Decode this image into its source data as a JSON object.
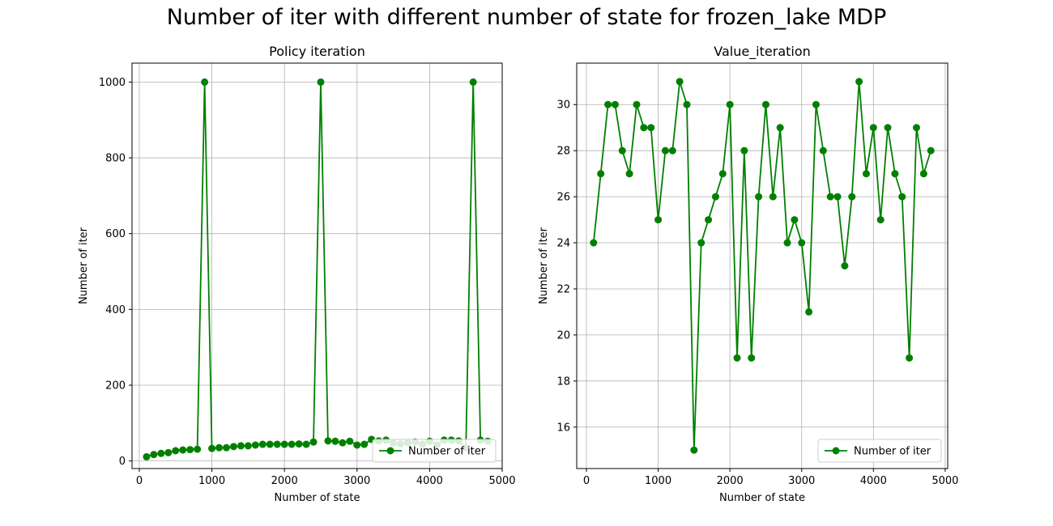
{
  "figure": {
    "title": "Number of iter with different number of state for frozen_lake MDP"
  },
  "chart_data": [
    {
      "type": "line",
      "title": "Policy iteration",
      "xlabel": "Number of state",
      "ylabel": "Number of iter",
      "xlim": [
        -100,
        5000
      ],
      "ylim": [
        -20,
        1050
      ],
      "xticks": [
        0,
        1000,
        2000,
        3000,
        4000,
        5000
      ],
      "yticks": [
        0,
        200,
        400,
        600,
        800,
        1000
      ],
      "grid": true,
      "legend": "lower-right",
      "color": "#008000",
      "marker": "circle",
      "series": [
        {
          "name": "Number of iter",
          "x": [
            100,
            200,
            300,
            400,
            500,
            600,
            700,
            800,
            900,
            1000,
            1100,
            1200,
            1300,
            1400,
            1500,
            1600,
            1700,
            1800,
            1900,
            2000,
            2100,
            2200,
            2300,
            2400,
            2500,
            2600,
            2700,
            2800,
            2900,
            3000,
            3100,
            3200,
            3300,
            3400,
            3500,
            3600,
            3700,
            3800,
            3900,
            4000,
            4100,
            4200,
            4300,
            4400,
            4500,
            4600,
            4700,
            4800
          ],
          "y": [
            11,
            17,
            20,
            22,
            27,
            29,
            30,
            31,
            1000,
            33,
            35,
            35,
            38,
            40,
            40,
            42,
            44,
            44,
            44,
            44,
            44,
            45,
            44,
            50,
            1000,
            53,
            52,
            48,
            52,
            42,
            44,
            57,
            53,
            55,
            47,
            45,
            48,
            50,
            44,
            52,
            42,
            55,
            55,
            53,
            35,
            1000,
            55,
            52
          ]
        }
      ]
    },
    {
      "type": "line",
      "title": "Value_iteration",
      "xlabel": "Number of state",
      "ylabel": "Number of iter",
      "xlim": [
        -135,
        5035
      ],
      "ylim": [
        14.2,
        31.8
      ],
      "xticks": [
        0,
        1000,
        2000,
        3000,
        4000,
        5000
      ],
      "yticks": [
        16,
        18,
        20,
        22,
        24,
        26,
        28,
        30
      ],
      "grid": true,
      "legend": "lower-right",
      "color": "#008000",
      "marker": "circle",
      "series": [
        {
          "name": "Number of iter",
          "x": [
            100,
            200,
            300,
            400,
            500,
            600,
            700,
            800,
            900,
            1000,
            1100,
            1200,
            1300,
            1400,
            1500,
            1600,
            1700,
            1800,
            1900,
            2000,
            2100,
            2200,
            2300,
            2400,
            2500,
            2600,
            2700,
            2800,
            2900,
            3000,
            3100,
            3200,
            3300,
            3400,
            3500,
            3600,
            3700,
            3800,
            3900,
            4000,
            4100,
            4200,
            4300,
            4400,
            4500,
            4600,
            4700,
            4800
          ],
          "y": [
            24,
            27,
            30,
            30,
            28,
            27,
            30,
            29,
            29,
            25,
            28,
            28,
            31,
            30,
            15,
            24,
            25,
            26,
            27,
            30,
            19,
            28,
            19,
            26,
            30,
            26,
            29,
            24,
            25,
            24,
            21,
            30,
            28,
            26,
            26,
            23,
            26,
            31,
            27,
            29,
            25,
            29,
            27,
            26,
            19,
            29,
            27,
            28
          ]
        }
      ]
    }
  ]
}
